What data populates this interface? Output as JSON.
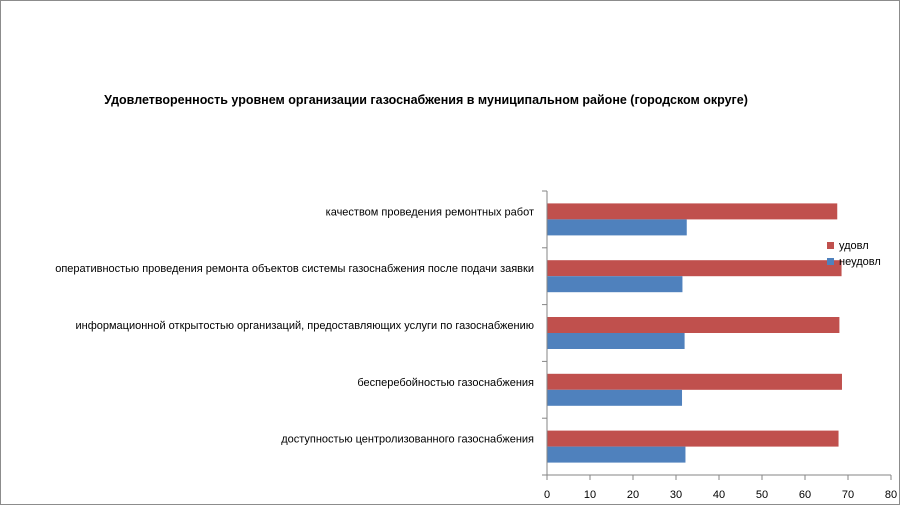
{
  "chart_data": {
    "type": "bar",
    "orientation": "horizontal",
    "title": "Удовлетворенность уровнем организации газоснабжения в муниципальном районе (городском округе)",
    "categories": [
      "качеством проведения ремонтных работ",
      "оперативностью проведения ремонта объектов системы газоснабжения после подачи заявки",
      "информационной открытостью организаций, предоставляющих услуги по газоснабжению",
      "бесперебойностью газоснабжения",
      "доступностью центролизованного газоснабжения"
    ],
    "series": [
      {
        "name": "удовл",
        "color": "#c0504d",
        "values": [
          67.5,
          68.5,
          68,
          68.6,
          67.8
        ]
      },
      {
        "name": "неудовл",
        "color": "#4f81bd",
        "values": [
          32.5,
          31.5,
          32,
          31.4,
          32.2
        ]
      }
    ],
    "xlim": [
      0,
      80
    ],
    "xticks": [
      "0",
      "10",
      "20",
      "30",
      "40",
      "50",
      "60",
      "70",
      "80"
    ],
    "grid": false,
    "legend_position": "right"
  }
}
